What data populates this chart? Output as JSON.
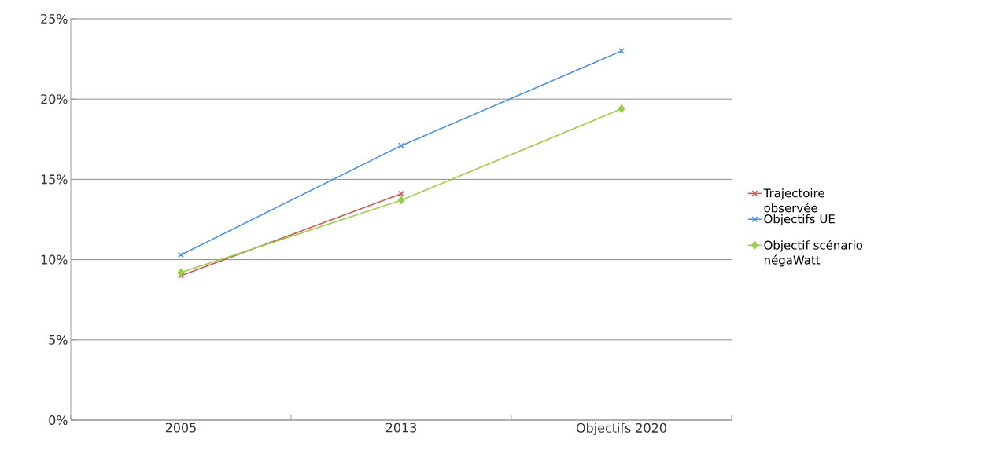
{
  "chart_data": {
    "type": "line",
    "categories": [
      "2005",
      "2013",
      "Objectifs 2020"
    ],
    "series": [
      {
        "name": "Trajectoire observée",
        "color": "#c85a5a",
        "marker": "cross",
        "values": [
          9.0,
          14.1,
          null
        ]
      },
      {
        "name": "Objectifs UE",
        "color": "#4f8fdc",
        "marker": "cross",
        "values": [
          10.3,
          17.1,
          23.0
        ]
      },
      {
        "name": "Objectif scénario négaWatt",
        "color": "#9acd4c",
        "marker": "diamond",
        "values": [
          9.2,
          13.7,
          19.4
        ]
      }
    ],
    "ylim": [
      0,
      25
    ],
    "yticks": [
      {
        "value": 0,
        "label": "0%"
      },
      {
        "value": 5,
        "label": "5%"
      },
      {
        "value": 10,
        "label": "10%"
      },
      {
        "value": 15,
        "label": "15%"
      },
      {
        "value": 20,
        "label": "20%"
      },
      {
        "value": 25,
        "label": "25%"
      }
    ],
    "grid": "y",
    "legend": "right",
    "line_style": "solid"
  }
}
